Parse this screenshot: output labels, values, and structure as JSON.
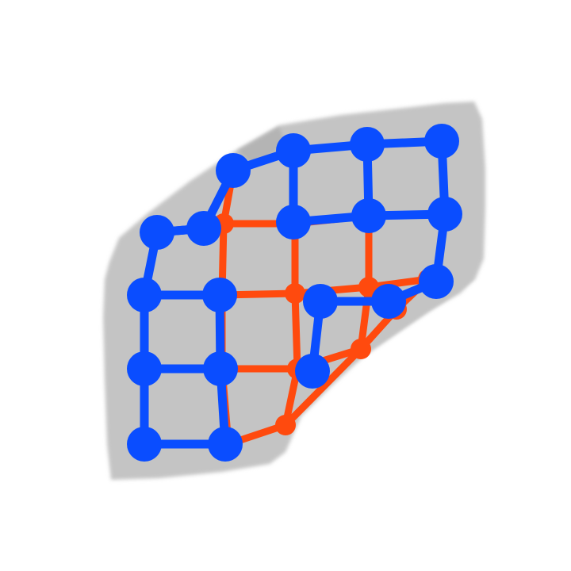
{
  "scene": {
    "background_color": "#ffffff",
    "cloth_color": "#c4c4c4",
    "cloth_edge_color": "#b4b4b4",
    "hidden_grid_color": "#ff4a0e",
    "visible_grid_color": "#0a4dff",
    "hidden_grid": {
      "rows": 4,
      "cols": 4,
      "node_count": 16,
      "edge_count": 24
    },
    "visible_grid": {
      "rows": 4,
      "cols": 4,
      "node_count": 16,
      "edge_count": 24
    }
  }
}
